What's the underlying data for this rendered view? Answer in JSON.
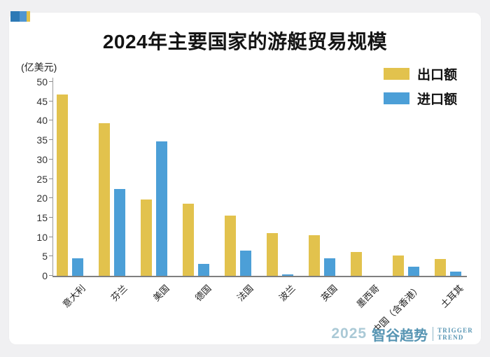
{
  "chart_data": {
    "type": "bar",
    "title": "2024年主要国家的游艇贸易规模",
    "ylabel": "(亿美元)",
    "categories": [
      "意大利",
      "芬兰",
      "美国",
      "德国",
      "法国",
      "波兰",
      "英国",
      "墨西哥",
      "中国（含香港）",
      "土耳其"
    ],
    "series": [
      {
        "name": "出口额",
        "color": "#e2c24d",
        "values": [
          46.8,
          39.3,
          19.6,
          18.6,
          15.5,
          11.0,
          10.5,
          6.2,
          5.2,
          4.4
        ]
      },
      {
        "name": "进口额",
        "color": "#4c9fd7",
        "values": [
          4.5,
          22.4,
          34.6,
          3.0,
          6.5,
          0.4,
          4.5,
          0,
          2.3,
          1.1
        ]
      }
    ],
    "ylim": [
      0,
      50
    ],
    "ytick_step": 5,
    "grid": false,
    "legend_position": "top-right"
  },
  "colors": {
    "export_bar": "#e2c24d",
    "import_bar": "#4c9fd7",
    "axis": "#7f7f7f",
    "card_background": "#ffffff",
    "page_background": "#f0f0f2",
    "footer_brand": "#5795b3"
  },
  "footer": {
    "year": "2025",
    "brand": "智谷趋势",
    "tagline_line1": "TRIGGER",
    "tagline_line2": "TREND"
  }
}
